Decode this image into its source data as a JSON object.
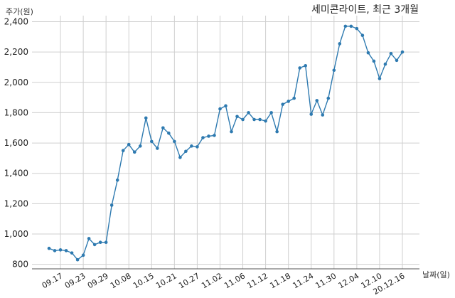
{
  "chart_data": {
    "type": "line",
    "title": "세미콘라이트, 최근 3개월",
    "xlabel": "날짜(일)",
    "ylabel": "주가(원)",
    "ylim": [
      770,
      2440
    ],
    "grid": true,
    "yticks": [
      "800",
      "1,000",
      "1,200",
      "1,400",
      "1,600",
      "1,800",
      "2,000",
      "2,200",
      "2,400"
    ],
    "ytick_values": [
      800,
      1000,
      1200,
      1400,
      1600,
      1800,
      2000,
      2200,
      2400
    ],
    "xticks": [
      "09.17",
      "09.23",
      "09.29",
      "10.08",
      "10.15",
      "10.21",
      "10.27",
      "11.02",
      "11.06",
      "11.12",
      "11.18",
      "11.24",
      "11.30",
      "12.04",
      "12.10",
      "20.12.16"
    ],
    "xtick_index": [
      2,
      6,
      10,
      14,
      18,
      22,
      26,
      30,
      34,
      38,
      42,
      46,
      50,
      54,
      58,
      62
    ],
    "series": [
      {
        "color": "#2e7ab0",
        "values": [
          905,
          890,
          895,
          890,
          875,
          830,
          860,
          970,
          930,
          945,
          945,
          1190,
          1355,
          1550,
          1590,
          1540,
          1580,
          1765,
          1610,
          1565,
          1700,
          1665,
          1610,
          1505,
          1545,
          1580,
          1575,
          1635,
          1645,
          1650,
          1825,
          1845,
          1675,
          1775,
          1755,
          1800,
          1755,
          1755,
          1745,
          1800,
          1675,
          1855,
          1875,
          1895,
          2095,
          2110,
          1790,
          1880,
          1785,
          1895,
          2080,
          2255,
          2370,
          2370,
          2355,
          2310,
          2195,
          2140,
          2025,
          2120,
          2190,
          2145,
          2200
        ]
      }
    ]
  }
}
